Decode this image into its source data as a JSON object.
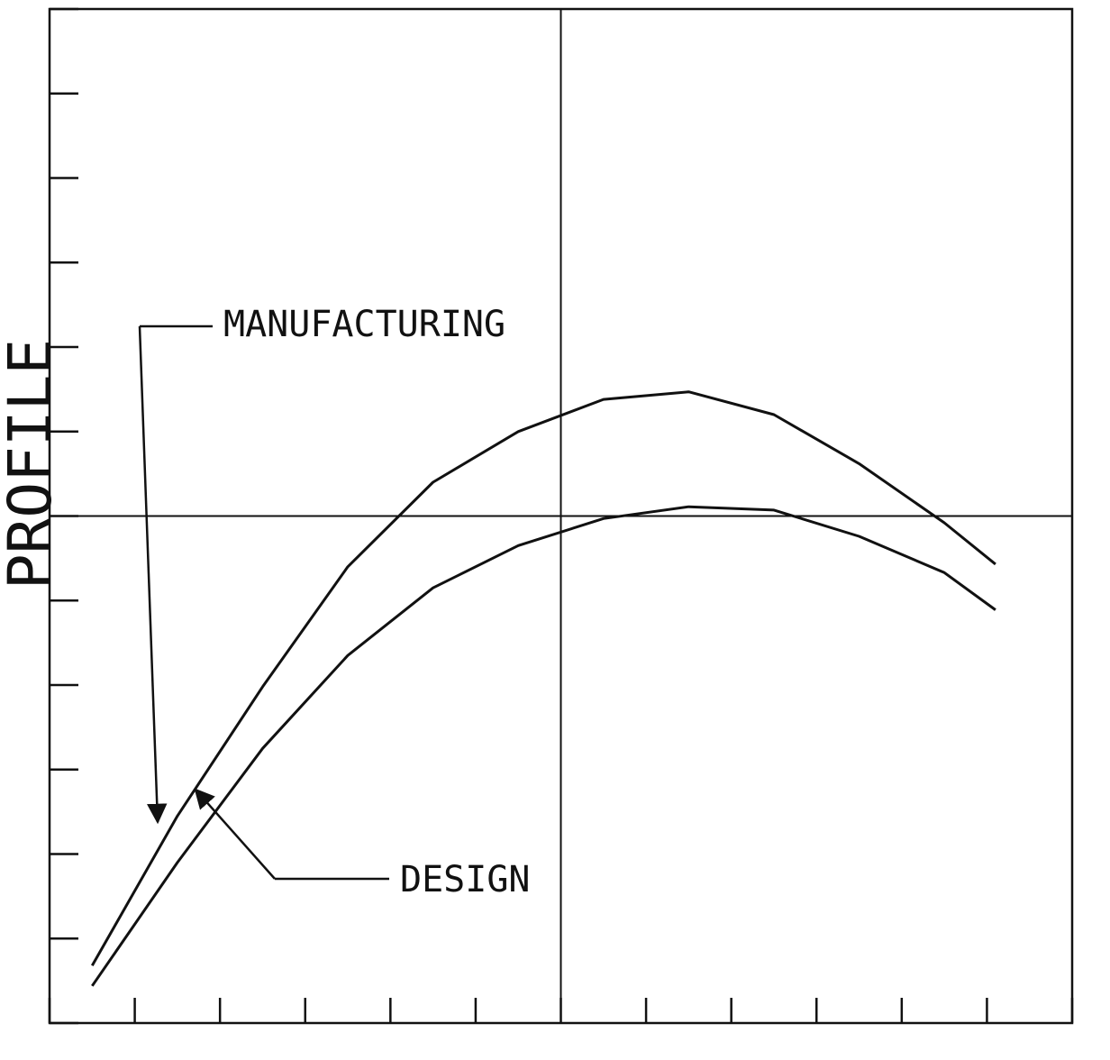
{
  "chart_data": {
    "type": "line",
    "ylabel": "PROFILE",
    "x": [
      0.5,
      1.5,
      2.5,
      3.5,
      4.5,
      5.5,
      6.5,
      7.5,
      8.5,
      9.5,
      10.5,
      11.1
    ],
    "series": [
      {
        "name": "DESIGN",
        "color": "#111111",
        "values": [
          0.68,
          2.45,
          3.98,
          5.4,
          6.4,
          7.0,
          7.38,
          7.47,
          7.2,
          6.62,
          5.92,
          5.43
        ]
      },
      {
        "name": "MANUFACTURING",
        "color": "#111111",
        "values": [
          0.44,
          1.9,
          3.25,
          4.35,
          5.15,
          5.65,
          5.97,
          6.11,
          6.07,
          5.76,
          5.33,
          4.89
        ]
      }
    ],
    "xlim": [
      0,
      12
    ],
    "ylim": [
      0,
      12
    ],
    "xticks": [
      0,
      1,
      2,
      3,
      4,
      5,
      6,
      7,
      8,
      9,
      10,
      11,
      12
    ],
    "yticks": [
      0,
      1,
      2,
      3,
      4,
      5,
      6,
      7,
      8,
      9,
      10,
      11,
      12
    ],
    "reference_lines": {
      "x": 6,
      "y": 6
    }
  }
}
